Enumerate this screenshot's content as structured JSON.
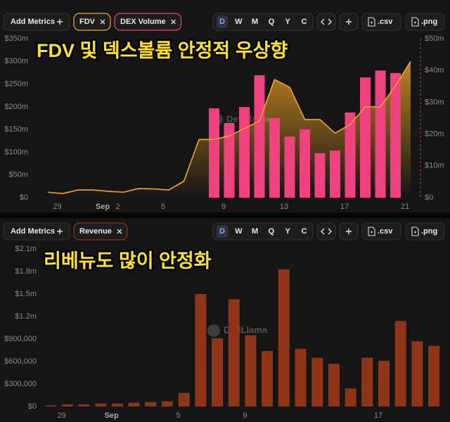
{
  "toolbars": [
    {
      "add_label": "Add Metrics",
      "periods": [
        "D",
        "W",
        "M",
        "Q",
        "Y",
        "C"
      ],
      "exports": [
        ".csv",
        ".png"
      ]
    },
    {
      "add_label": "Add Metrics",
      "periods": [
        "D",
        "W",
        "M",
        "Q",
        "Y",
        "C"
      ],
      "exports": [
        ".csv",
        ".png"
      ]
    }
  ],
  "chart_data": [
    {
      "type": "combo",
      "annotation": "FDV 및 덱스볼륨 안정적 우상향",
      "watermark": "DefiLlama",
      "categories": [
        null,
        "29",
        null,
        null,
        "Sep",
        "2",
        null,
        null,
        "5",
        null,
        null,
        null,
        "9",
        null,
        null,
        null,
        "13",
        null,
        null,
        null,
        "17",
        null,
        null,
        null,
        "21"
      ],
      "series": [
        {
          "name": "FDV",
          "type": "area",
          "color": "#f5a623",
          "axis": "y",
          "values": [
            12,
            9,
            17,
            17,
            14,
            12,
            20,
            19,
            17,
            36,
            128,
            128,
            136,
            152,
            169,
            260,
            243,
            172,
            172,
            142,
            161,
            200,
            200,
            246,
            300
          ]
        },
        {
          "name": "DEX Volume",
          "type": "bar",
          "color": "#f0417f",
          "axis": "y2",
          "values": [
            null,
            null,
            null,
            null,
            null,
            null,
            null,
            null,
            null,
            null,
            null,
            28.1,
            23.5,
            28.5,
            38.5,
            25,
            19.2,
            21.5,
            14,
            14.8,
            26.8,
            37.8,
            40,
            39.2,
            null
          ]
        }
      ],
      "ylim": [
        0,
        350
      ],
      "yticks": [
        {
          "value": 0,
          "label": "$0"
        },
        {
          "value": 50,
          "label": "$50m"
        },
        {
          "value": 100,
          "label": "$100m"
        },
        {
          "value": 150,
          "label": "$150m"
        },
        {
          "value": 200,
          "label": "$200m"
        },
        {
          "value": 250,
          "label": "$250m"
        },
        {
          "value": 300,
          "label": "$300m"
        },
        {
          "value": 350,
          "label": "$350m"
        }
      ],
      "y2lim": [
        0,
        50
      ],
      "y2ticks": [
        {
          "value": 0,
          "label": "$0"
        },
        {
          "value": 10,
          "label": "$10m"
        },
        {
          "value": 20,
          "label": "$20m"
        },
        {
          "value": 30,
          "label": "$30m"
        },
        {
          "value": 40,
          "label": "$40m"
        },
        {
          "value": 50,
          "label": "$50m"
        }
      ],
      "grid": false
    },
    {
      "type": "bar",
      "annotation": "리베뉴도 많이 안정화",
      "watermark": "DefiLlama",
      "categories": [
        null,
        "29",
        null,
        null,
        "Sep",
        null,
        null,
        null,
        "5",
        null,
        null,
        null,
        "9",
        null,
        null,
        null,
        null,
        null,
        null,
        null,
        "17",
        null,
        null,
        null
      ],
      "series": [
        {
          "name": "Revenue",
          "type": "bar",
          "color": "#8f3417",
          "axis": "y",
          "values": [
            15000,
            30000,
            30000,
            40000,
            40000,
            50000,
            60000,
            70000,
            180000,
            1500000,
            910000,
            1430000,
            950000,
            740000,
            1830000,
            770000,
            650000,
            570000,
            240000,
            650000,
            610000,
            1140000,
            870000,
            810000
          ]
        }
      ],
      "ylim": [
        0,
        2100000
      ],
      "yticks": [
        {
          "value": 0,
          "label": "$0"
        },
        {
          "value": 300000,
          "label": "$300,000"
        },
        {
          "value": 600000,
          "label": "$600,000"
        },
        {
          "value": 900000,
          "label": "$900,000"
        },
        {
          "value": 1200000,
          "label": "$1.2m"
        },
        {
          "value": 1500000,
          "label": "$1.5m"
        },
        {
          "value": 1800000,
          "label": "$1.8m"
        },
        {
          "value": 2100000,
          "label": "$2.1m"
        }
      ],
      "grid": false
    }
  ]
}
